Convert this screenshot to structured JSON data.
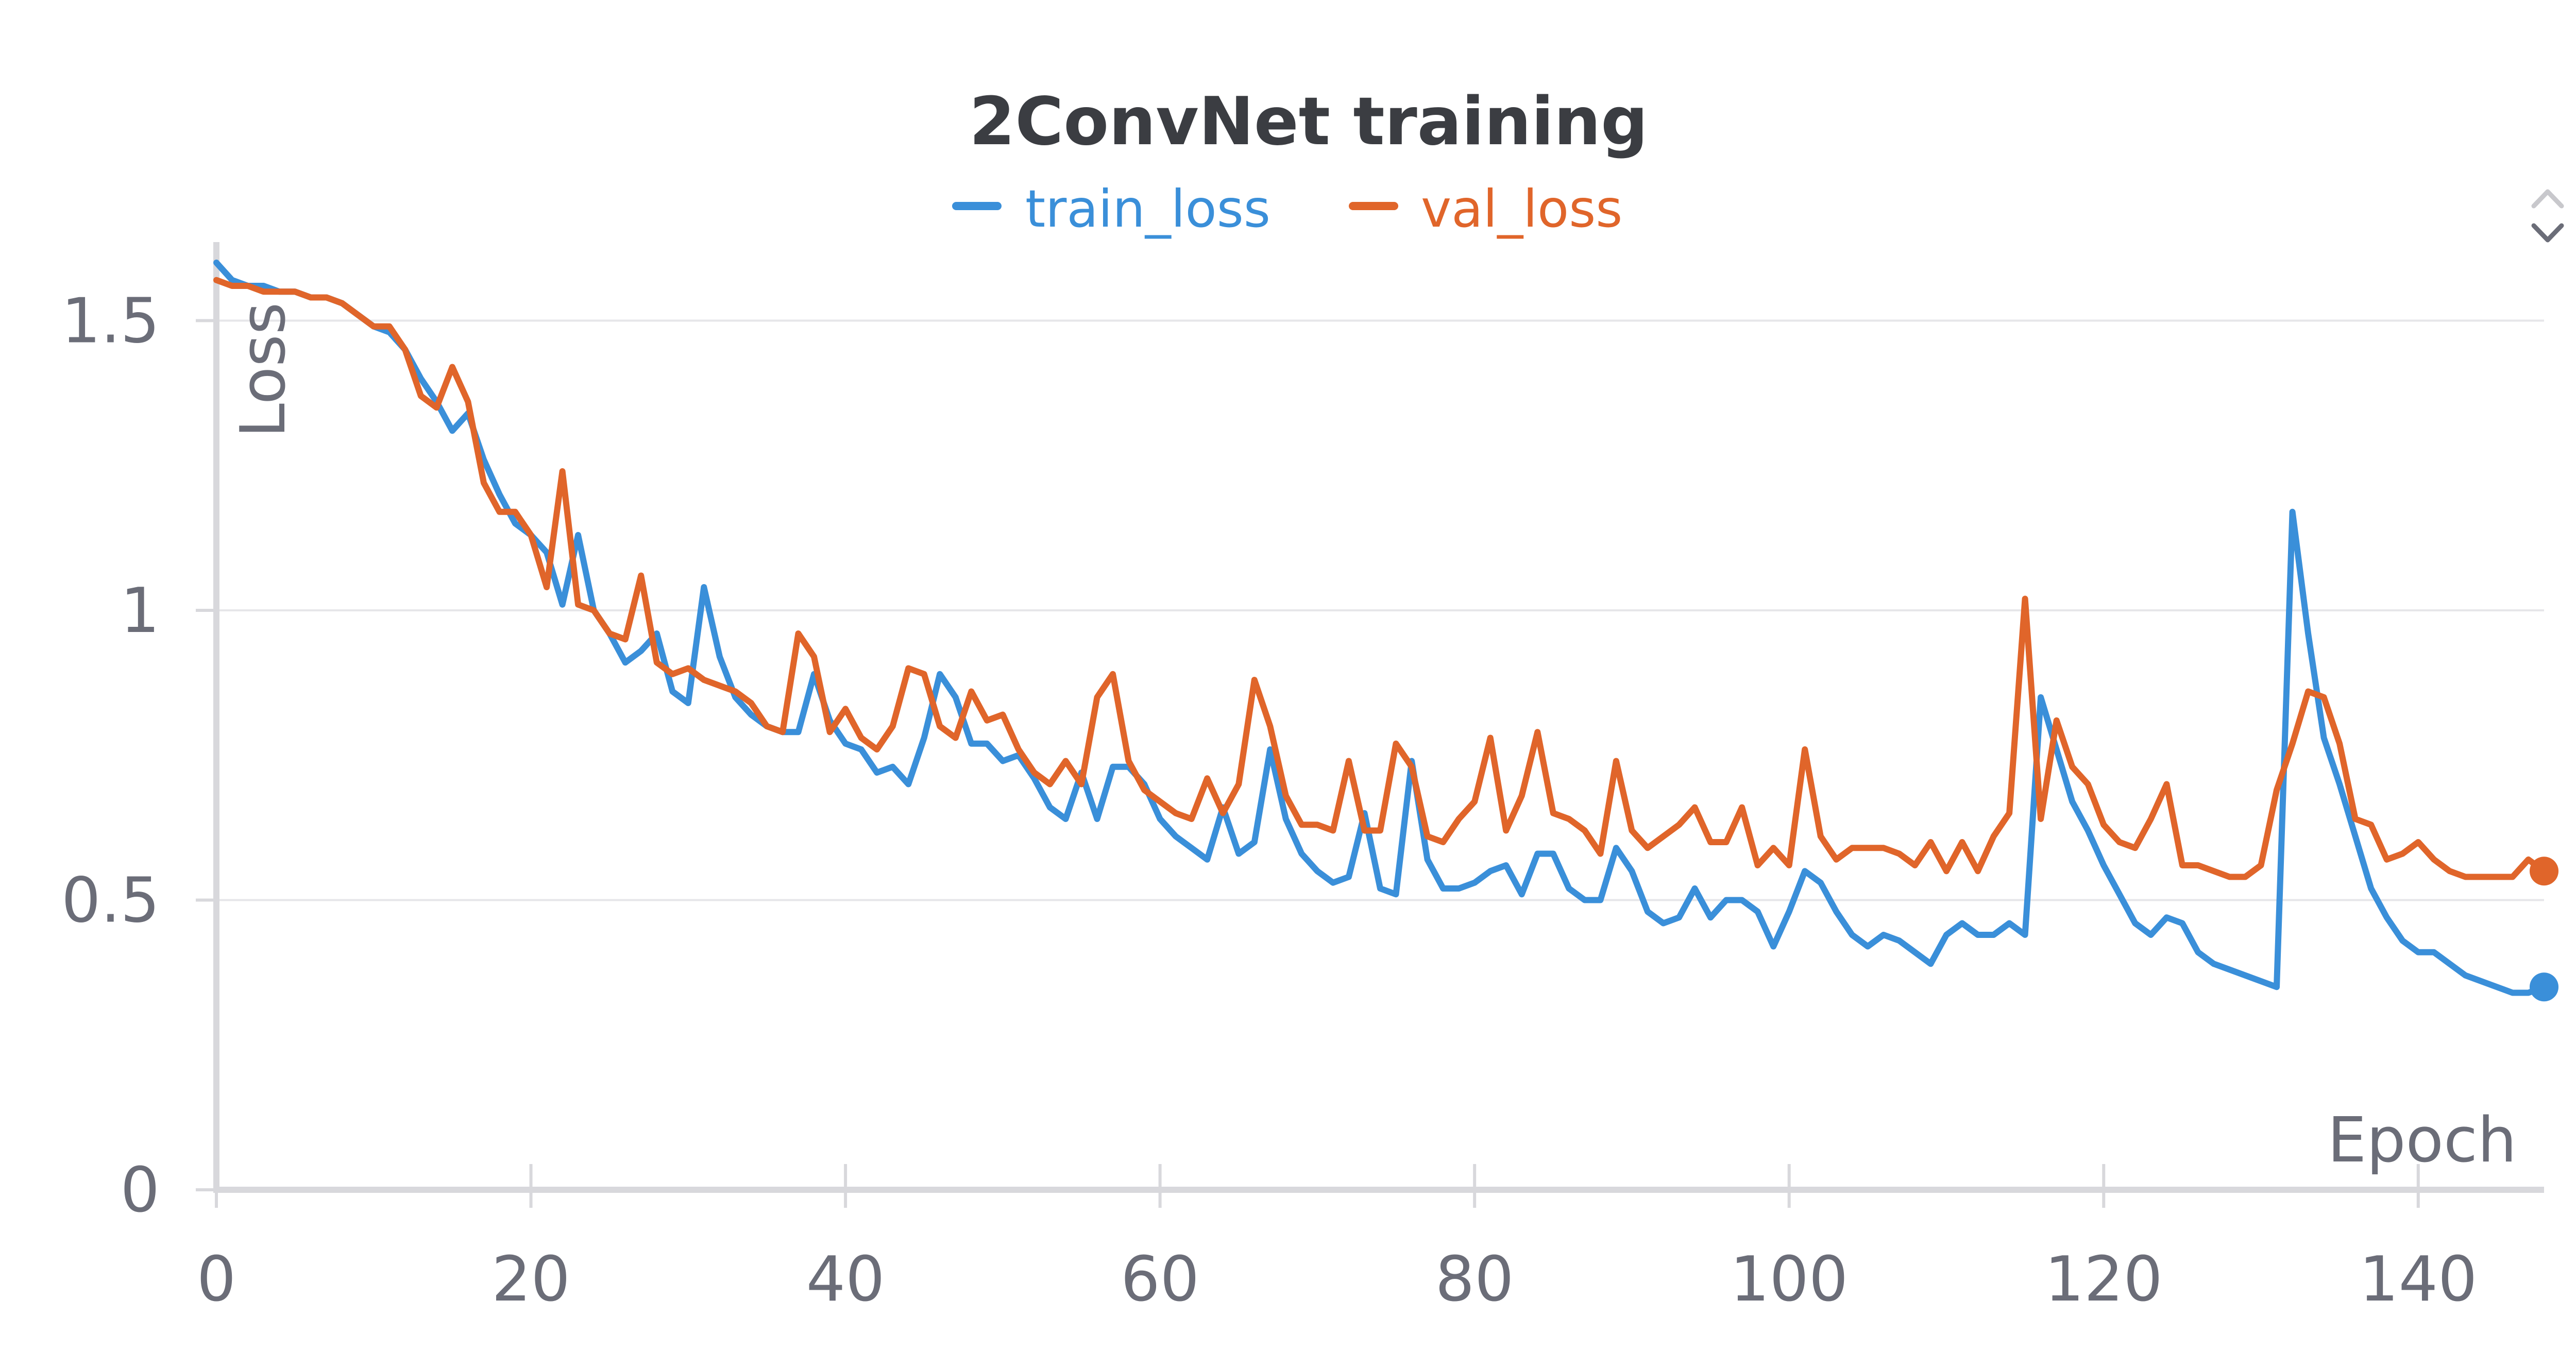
{
  "chart_data": {
    "type": "line",
    "title": "2ConvNet training",
    "xlabel": "Epoch",
    "ylabel": "Loss",
    "xlim": [
      0,
      148
    ],
    "ylim": [
      0,
      1.6
    ],
    "x_ticks": [
      0,
      20,
      40,
      60,
      80,
      100,
      120,
      140
    ],
    "x_tick_labels": [
      "0",
      "20",
      "40",
      "60",
      "80",
      "100",
      "120",
      "140"
    ],
    "y_ticks": [
      0,
      0.5,
      1,
      1.5
    ],
    "y_tick_labels": [
      "0",
      "0.5",
      "1",
      "1.5"
    ],
    "grid": true,
    "legend_position": "top-center",
    "x": [
      0,
      1,
      2,
      3,
      4,
      5,
      6,
      7,
      8,
      9,
      10,
      11,
      12,
      13,
      14,
      15,
      16,
      17,
      18,
      19,
      20,
      21,
      22,
      23,
      24,
      25,
      26,
      27,
      28,
      29,
      30,
      31,
      32,
      33,
      34,
      35,
      36,
      37,
      38,
      39,
      40,
      41,
      42,
      43,
      44,
      45,
      46,
      47,
      48,
      49,
      50,
      51,
      52,
      53,
      54,
      55,
      56,
      57,
      58,
      59,
      60,
      61,
      62,
      63,
      64,
      65,
      66,
      67,
      68,
      69,
      70,
      71,
      72,
      73,
      74,
      75,
      76,
      77,
      78,
      79,
      80,
      81,
      82,
      83,
      84,
      85,
      86,
      87,
      88,
      89,
      90,
      91,
      92,
      93,
      94,
      95,
      96,
      97,
      98,
      99,
      100,
      101,
      102,
      103,
      104,
      105,
      106,
      107,
      108,
      109,
      110,
      111,
      112,
      113,
      114,
      115,
      116,
      117,
      118,
      119,
      120,
      121,
      122,
      123,
      124,
      125,
      126,
      127,
      128,
      129,
      130,
      131,
      132,
      133,
      134,
      135,
      136,
      137,
      138,
      139,
      140,
      141,
      142,
      143,
      144,
      145,
      146,
      147,
      148
    ],
    "series": [
      {
        "name": "train_loss",
        "color": "#3a8fd9",
        "values": [
          1.6,
          1.57,
          1.56,
          1.56,
          1.55,
          1.55,
          1.54,
          1.54,
          1.53,
          1.51,
          1.49,
          1.48,
          1.45,
          1.4,
          1.36,
          1.31,
          1.34,
          1.26,
          1.2,
          1.15,
          1.13,
          1.1,
          1.01,
          1.13,
          1.0,
          0.96,
          0.91,
          0.93,
          0.96,
          0.86,
          0.84,
          1.04,
          0.92,
          0.85,
          0.82,
          0.8,
          0.79,
          0.79,
          0.89,
          0.81,
          0.77,
          0.76,
          0.72,
          0.73,
          0.7,
          0.78,
          0.89,
          0.85,
          0.77,
          0.77,
          0.74,
          0.75,
          0.71,
          0.66,
          0.64,
          0.72,
          0.64,
          0.73,
          0.73,
          0.7,
          0.64,
          0.61,
          0.59,
          0.57,
          0.66,
          0.58,
          0.6,
          0.76,
          0.64,
          0.58,
          0.55,
          0.53,
          0.54,
          0.65,
          0.52,
          0.51,
          0.74,
          0.57,
          0.52,
          0.52,
          0.53,
          0.55,
          0.56,
          0.51,
          0.58,
          0.58,
          0.52,
          0.5,
          0.5,
          0.59,
          0.55,
          0.48,
          0.46,
          0.47,
          0.52,
          0.47,
          0.5,
          0.5,
          0.48,
          0.42,
          0.48,
          0.55,
          0.53,
          0.48,
          0.44,
          0.42,
          0.44,
          0.43,
          0.41,
          0.39,
          0.44,
          0.46,
          0.44,
          0.44,
          0.46,
          0.44,
          0.85,
          0.76,
          0.67,
          0.62,
          0.56,
          0.51,
          0.46,
          0.44,
          0.47,
          0.46,
          0.41,
          0.39,
          0.38,
          0.37,
          0.36,
          0.35,
          1.17,
          0.96,
          0.78,
          0.7,
          0.61,
          0.52,
          0.47,
          0.43,
          0.41,
          0.41,
          0.39,
          0.37,
          0.36,
          0.35,
          0.34,
          0.34,
          0.35
        ]
      },
      {
        "name": "val_loss",
        "color": "#e0652a",
        "values": [
          1.57,
          1.56,
          1.56,
          1.55,
          1.55,
          1.55,
          1.54,
          1.54,
          1.53,
          1.51,
          1.49,
          1.49,
          1.45,
          1.37,
          1.35,
          1.42,
          1.36,
          1.22,
          1.17,
          1.17,
          1.13,
          1.04,
          1.24,
          1.01,
          1.0,
          0.96,
          0.95,
          1.06,
          0.91,
          0.89,
          0.9,
          0.88,
          0.87,
          0.86,
          0.84,
          0.8,
          0.79,
          0.96,
          0.92,
          0.79,
          0.83,
          0.78,
          0.76,
          0.8,
          0.9,
          0.89,
          0.8,
          0.78,
          0.86,
          0.81,
          0.82,
          0.76,
          0.72,
          0.7,
          0.74,
          0.7,
          0.85,
          0.89,
          0.74,
          0.69,
          0.67,
          0.65,
          0.64,
          0.71,
          0.65,
          0.7,
          0.88,
          0.8,
          0.68,
          0.63,
          0.63,
          0.62,
          0.74,
          0.62,
          0.62,
          0.77,
          0.73,
          0.61,
          0.6,
          0.64,
          0.67,
          0.78,
          0.62,
          0.68,
          0.79,
          0.65,
          0.64,
          0.62,
          0.58,
          0.74,
          0.62,
          0.59,
          0.61,
          0.63,
          0.66,
          0.6,
          0.6,
          0.66,
          0.56,
          0.59,
          0.56,
          0.76,
          0.61,
          0.57,
          0.59,
          0.59,
          0.59,
          0.58,
          0.56,
          0.6,
          0.55,
          0.6,
          0.55,
          0.61,
          0.65,
          1.02,
          0.64,
          0.81,
          0.73,
          0.7,
          0.63,
          0.6,
          0.59,
          0.64,
          0.7,
          0.56,
          0.56,
          0.55,
          0.54,
          0.54,
          0.56,
          0.69,
          0.77,
          0.86,
          0.85,
          0.77,
          0.64,
          0.63,
          0.57,
          0.58,
          0.6,
          0.57,
          0.55,
          0.54,
          0.54,
          0.54,
          0.54,
          0.57,
          0.55
        ]
      }
    ]
  },
  "icons": {
    "resize_handle": "chevron-up-down-icon"
  }
}
